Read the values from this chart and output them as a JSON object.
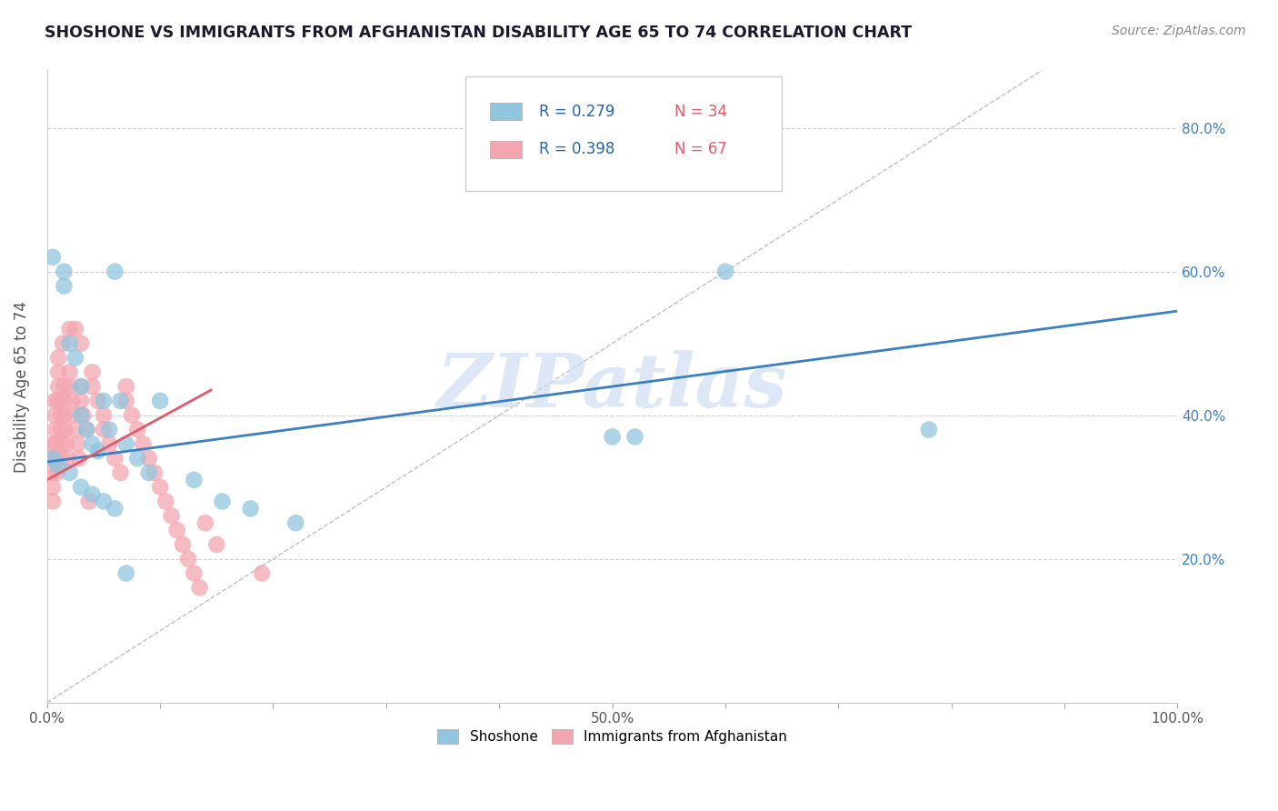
{
  "title": "SHOSHONE VS IMMIGRANTS FROM AFGHANISTAN DISABILITY AGE 65 TO 74 CORRELATION CHART",
  "source_text": "Source: ZipAtlas.com",
  "ylabel": "Disability Age 65 to 74",
  "xlim": [
    0,
    1.0
  ],
  "ylim": [
    0.0,
    0.88
  ],
  "xticks": [
    0.0,
    0.1,
    0.2,
    0.3,
    0.4,
    0.5,
    0.6,
    0.7,
    0.8,
    0.9,
    1.0
  ],
  "xticklabels": [
    "0.0%",
    "",
    "",
    "",
    "",
    "50.0%",
    "",
    "",
    "",
    "",
    "100.0%"
  ],
  "yticks": [
    0.2,
    0.4,
    0.6,
    0.8
  ],
  "yticklabels": [
    "20.0%",
    "40.0%",
    "60.0%",
    "80.0%"
  ],
  "legend_R1": "R = 0.279",
  "legend_N1": "N = 34",
  "legend_R2": "R = 0.398",
  "legend_N2": "N = 67",
  "watermark": "ZIPatlas",
  "blue_color": "#92c5de",
  "pink_color": "#f4a6b0",
  "blue_line_color": "#3a7fc1",
  "pink_line_color": "#e05a6a",
  "blue_trend_x": [
    0.0,
    1.0
  ],
  "blue_trend_y": [
    0.335,
    0.545
  ],
  "pink_trend_x": [
    0.0,
    0.145
  ],
  "pink_trend_y": [
    0.31,
    0.435
  ],
  "diag_line_x": [
    0.0,
    0.88
  ],
  "diag_line_y": [
    0.0,
    0.88
  ],
  "shoshone_x": [
    0.005,
    0.015,
    0.015,
    0.02,
    0.025,
    0.03,
    0.03,
    0.035,
    0.04,
    0.045,
    0.05,
    0.055,
    0.06,
    0.065,
    0.07,
    0.08,
    0.09,
    0.1,
    0.13,
    0.155,
    0.18,
    0.22,
    0.5,
    0.52,
    0.6,
    0.78,
    0.005,
    0.01,
    0.02,
    0.03,
    0.04,
    0.05,
    0.06,
    0.07
  ],
  "shoshone_y": [
    0.62,
    0.6,
    0.58,
    0.5,
    0.48,
    0.44,
    0.4,
    0.38,
    0.36,
    0.35,
    0.42,
    0.38,
    0.6,
    0.42,
    0.36,
    0.34,
    0.32,
    0.42,
    0.31,
    0.28,
    0.27,
    0.25,
    0.37,
    0.37,
    0.6,
    0.38,
    0.34,
    0.33,
    0.32,
    0.3,
    0.29,
    0.28,
    0.27,
    0.18
  ],
  "afghan_x": [
    0.005,
    0.005,
    0.005,
    0.005,
    0.005,
    0.007,
    0.007,
    0.007,
    0.008,
    0.008,
    0.009,
    0.01,
    0.01,
    0.01,
    0.01,
    0.012,
    0.012,
    0.013,
    0.013,
    0.014,
    0.015,
    0.015,
    0.015,
    0.016,
    0.017,
    0.018,
    0.02,
    0.02,
    0.02,
    0.022,
    0.023,
    0.025,
    0.025,
    0.027,
    0.028,
    0.03,
    0.03,
    0.03,
    0.032,
    0.035,
    0.037,
    0.04,
    0.04,
    0.045,
    0.05,
    0.05,
    0.055,
    0.06,
    0.065,
    0.07,
    0.07,
    0.075,
    0.08,
    0.085,
    0.09,
    0.095,
    0.1,
    0.105,
    0.11,
    0.115,
    0.12,
    0.125,
    0.13,
    0.135,
    0.14,
    0.15,
    0.19
  ],
  "afghan_y": [
    0.36,
    0.34,
    0.32,
    0.3,
    0.28,
    0.42,
    0.4,
    0.38,
    0.36,
    0.34,
    0.32,
    0.48,
    0.46,
    0.44,
    0.42,
    0.4,
    0.38,
    0.36,
    0.34,
    0.5,
    0.44,
    0.42,
    0.4,
    0.38,
    0.36,
    0.34,
    0.52,
    0.46,
    0.44,
    0.42,
    0.4,
    0.52,
    0.38,
    0.36,
    0.34,
    0.5,
    0.44,
    0.42,
    0.4,
    0.38,
    0.28,
    0.46,
    0.44,
    0.42,
    0.4,
    0.38,
    0.36,
    0.34,
    0.32,
    0.44,
    0.42,
    0.4,
    0.38,
    0.36,
    0.34,
    0.32,
    0.3,
    0.28,
    0.26,
    0.24,
    0.22,
    0.2,
    0.18,
    0.16,
    0.25,
    0.22,
    0.18
  ]
}
